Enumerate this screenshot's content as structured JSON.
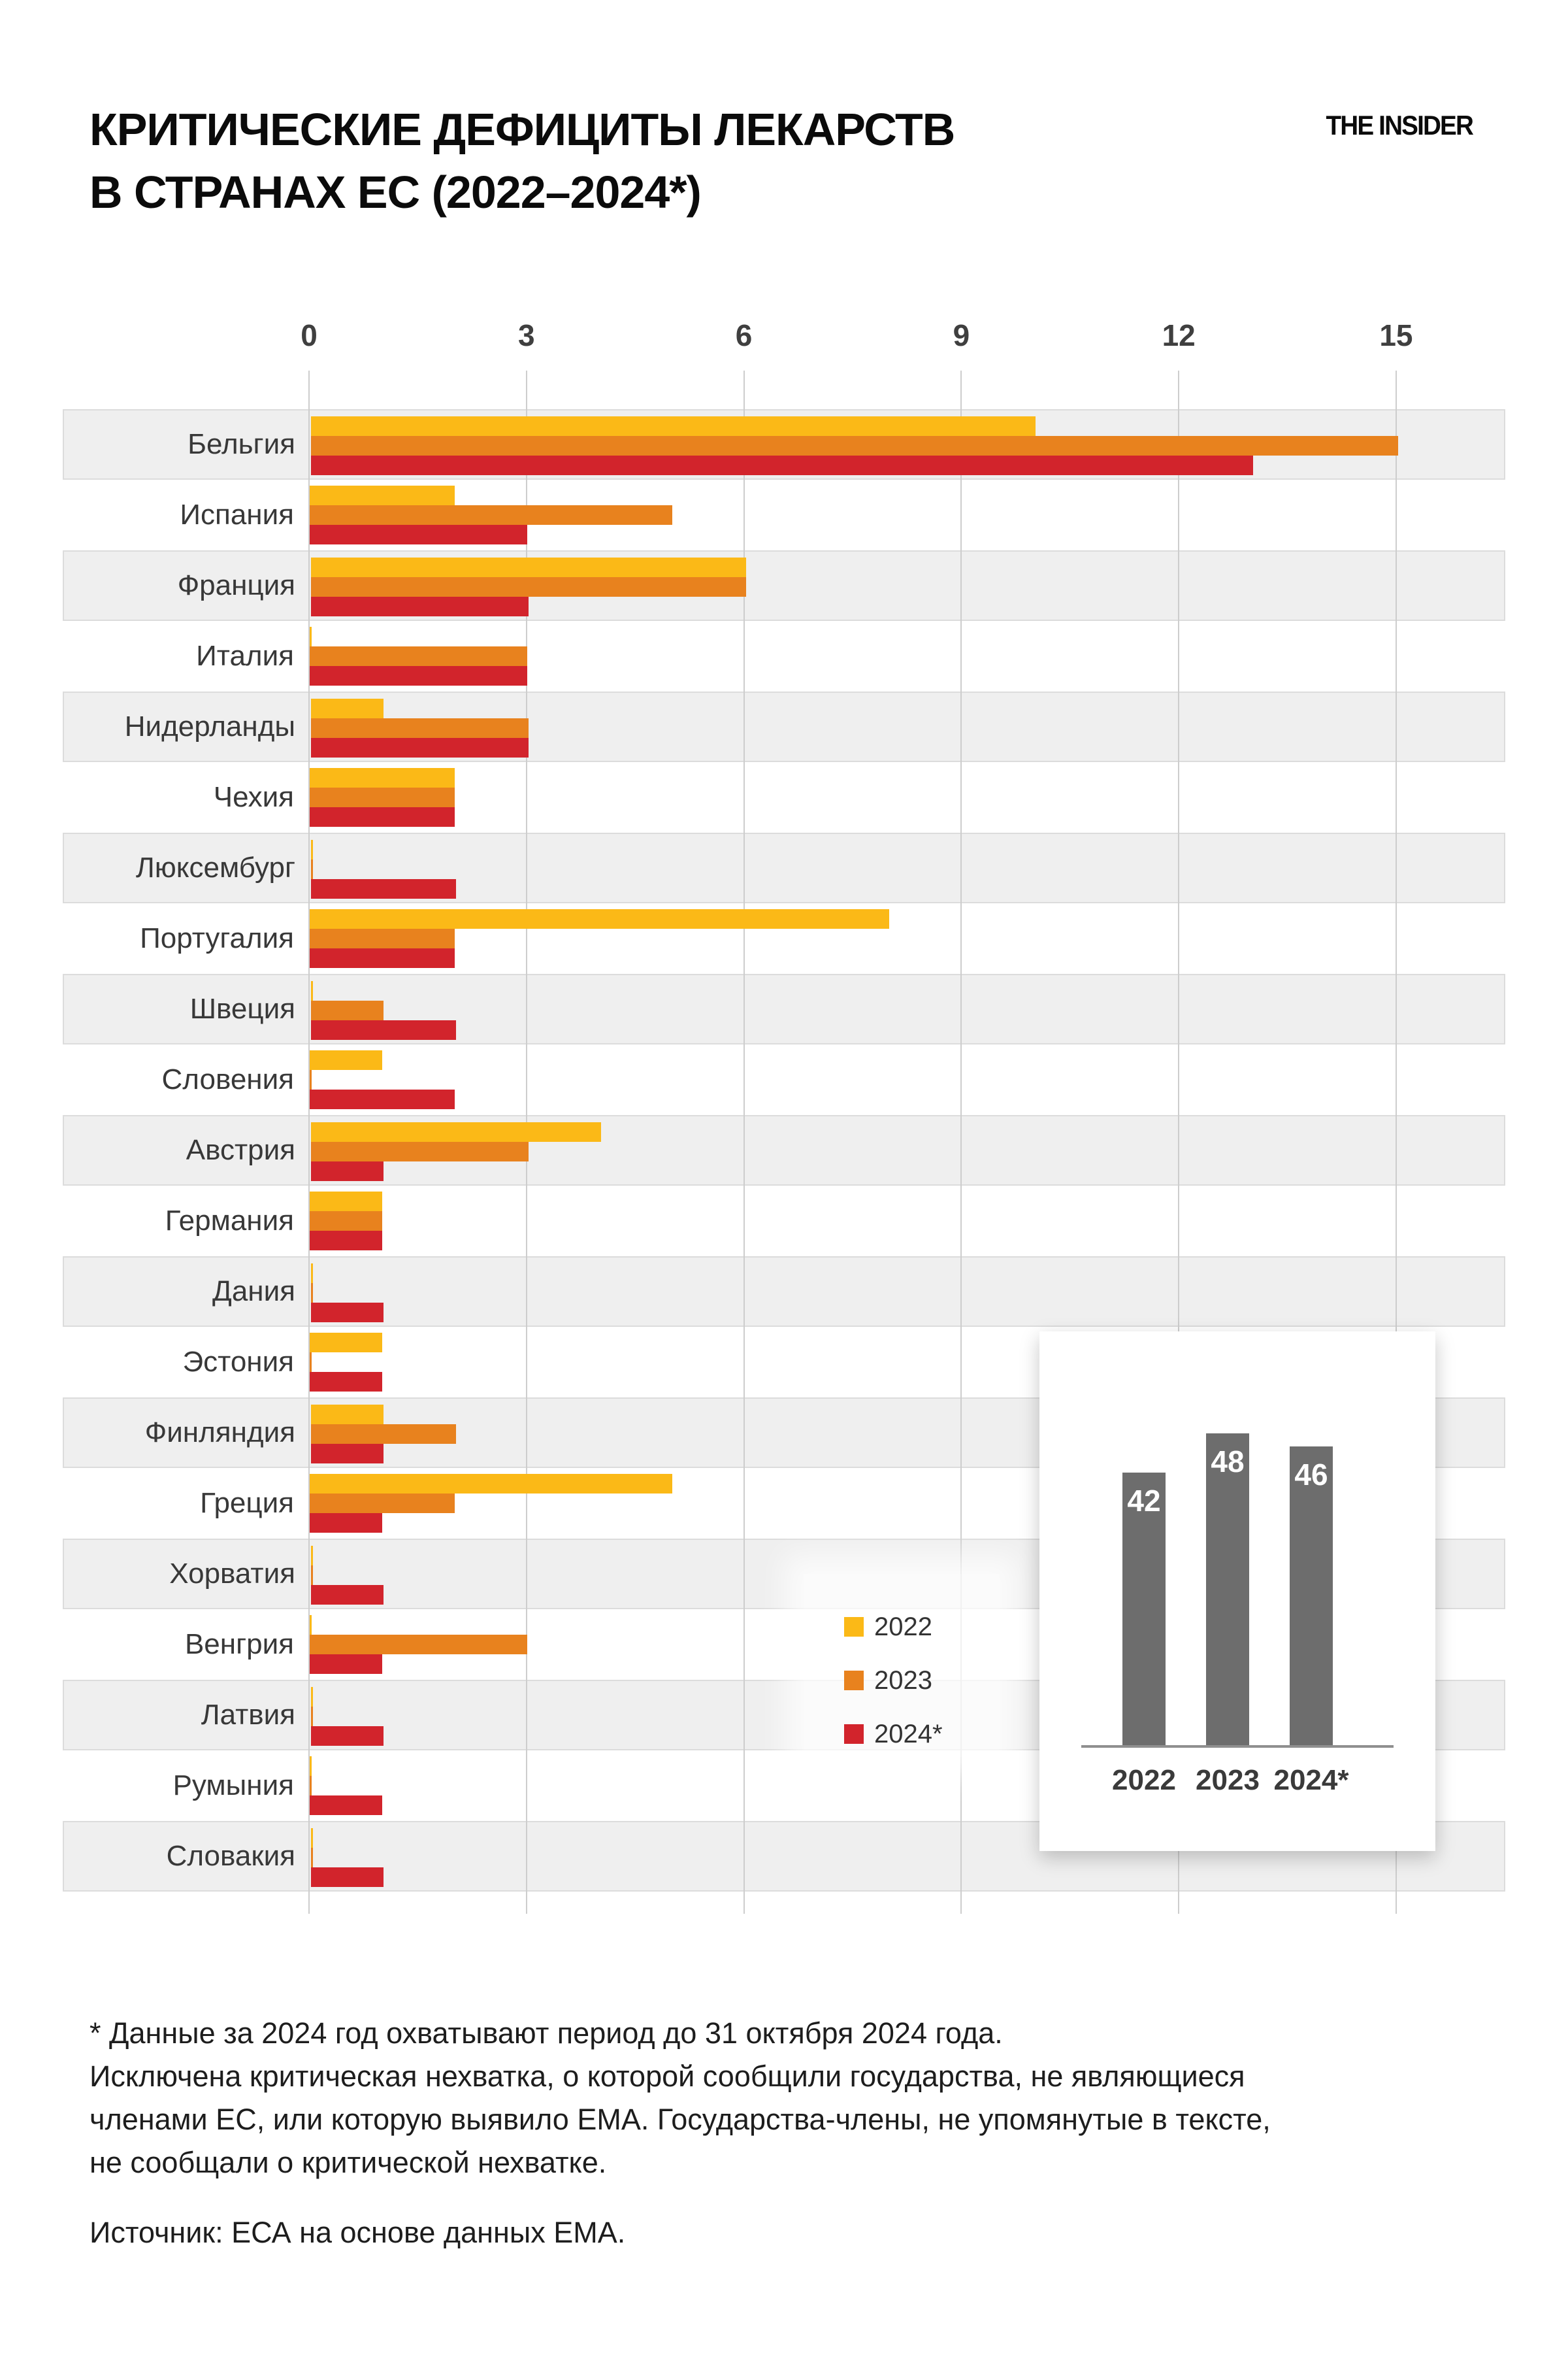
{
  "header": {
    "title": "КРИТИЧЕСКИЕ ДЕФИЦИТЫ ЛЕКАРСТВ\nВ СТРАНАХ ЕС (2022–2024*)",
    "brand": "THE INSIDER"
  },
  "colors": {
    "y2022": "#FBB917",
    "y2023": "#E8821E",
    "y2024": "#D2242C",
    "band": "#efefef",
    "gridline": "#cdcdcd",
    "inset_bar": "#6d6d6d"
  },
  "legend": {
    "items": [
      {
        "label": "2022",
        "color": "#FBB917"
      },
      {
        "label": "2023",
        "color": "#E8821E"
      },
      {
        "label": "2024*",
        "color": "#D2242C"
      }
    ]
  },
  "chart_data": [
    {
      "type": "bar",
      "orientation": "horizontal",
      "title": "Критические дефициты лекарств по странам ЕС",
      "x_ticks": [
        0,
        3,
        6,
        9,
        12,
        15
      ],
      "xlim": [
        0,
        16.5
      ],
      "grid": true,
      "legend_position": "center-right",
      "categories": [
        "Бельгия",
        "Испания",
        "Франция",
        "Италия",
        "Нидерланды",
        "Чехия",
        "Люксембург",
        "Португалия",
        "Швеция",
        "Словения",
        "Австрия",
        "Германия",
        "Дания",
        "Эстония",
        "Финляндия",
        "Греция",
        "Хорватия",
        "Венгрия",
        "Латвия",
        "Румыния",
        "Словакия"
      ],
      "series": [
        {
          "name": "2022",
          "color": "#FBB917",
          "values": [
            10,
            2,
            6,
            0,
            1,
            2,
            0,
            8,
            0,
            1,
            4,
            1,
            0,
            1,
            1,
            5,
            0,
            0,
            0,
            0,
            0
          ]
        },
        {
          "name": "2023",
          "color": "#E8821E",
          "values": [
            15,
            5,
            6,
            3,
            3,
            2,
            0,
            2,
            1,
            0,
            3,
            1,
            0,
            0,
            2,
            2,
            0,
            3,
            0,
            0,
            0
          ]
        },
        {
          "name": "2024*",
          "color": "#D2242C",
          "values": [
            13,
            3,
            3,
            3,
            3,
            2,
            2,
            2,
            2,
            2,
            1,
            1,
            1,
            1,
            1,
            1,
            1,
            1,
            1,
            1,
            1
          ]
        }
      ]
    },
    {
      "type": "bar",
      "orientation": "vertical",
      "title": "Всего по ЕС",
      "categories": [
        "2022",
        "2023",
        "2024*"
      ],
      "values": [
        42,
        48,
        46
      ],
      "bar_color": "#6d6d6d",
      "ylim": [
        0,
        52
      ],
      "grid": false,
      "data_labels": [
        "42",
        "48",
        "46"
      ]
    }
  ],
  "footnote": "* Данные за 2024 год охватывают период до 31 октября 2024 года.\nИсключена критическая нехватка, о которой сообщили государства, не являющиеся\nчленами ЕС, или которую выявило ЕМА. Государства-члены, не упомянутые в тексте,\nне сообщали о критической нехватке.",
  "source": "Источник: ЕСА на основе данных ЕМА."
}
